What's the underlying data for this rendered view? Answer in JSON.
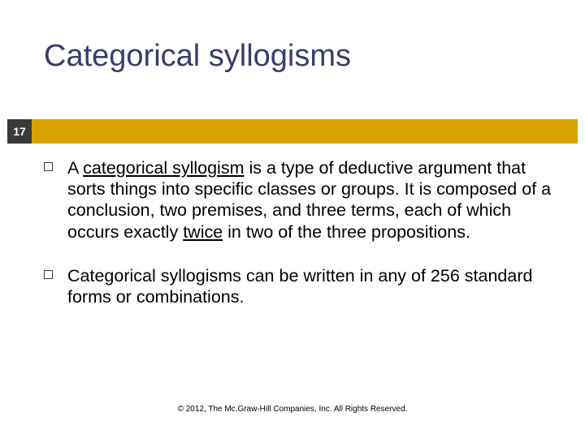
{
  "slide": {
    "title": "Categorical syllogisms",
    "page_number": "17",
    "accent_color": "#d9a300",
    "page_tab_color": "#3b3b3b",
    "title_color": "#3b3b6d",
    "bullets": [
      {
        "pre": "A ",
        "term": "categorical syllogism",
        "post1": " is a type of deductive argument that sorts things into specific classes or groups. It is composed of a conclusion, two premises, and three terms, each of which occurs exactly ",
        "word2": "twice",
        "post2": " in two of the three propositions."
      },
      {
        "text": "Categorical syllogisms can be written in any of 256 standard forms or combinations."
      }
    ],
    "footer": "© 2012, The Mc.Graw-Hill Companies, Inc.  All Rights Reserved."
  }
}
